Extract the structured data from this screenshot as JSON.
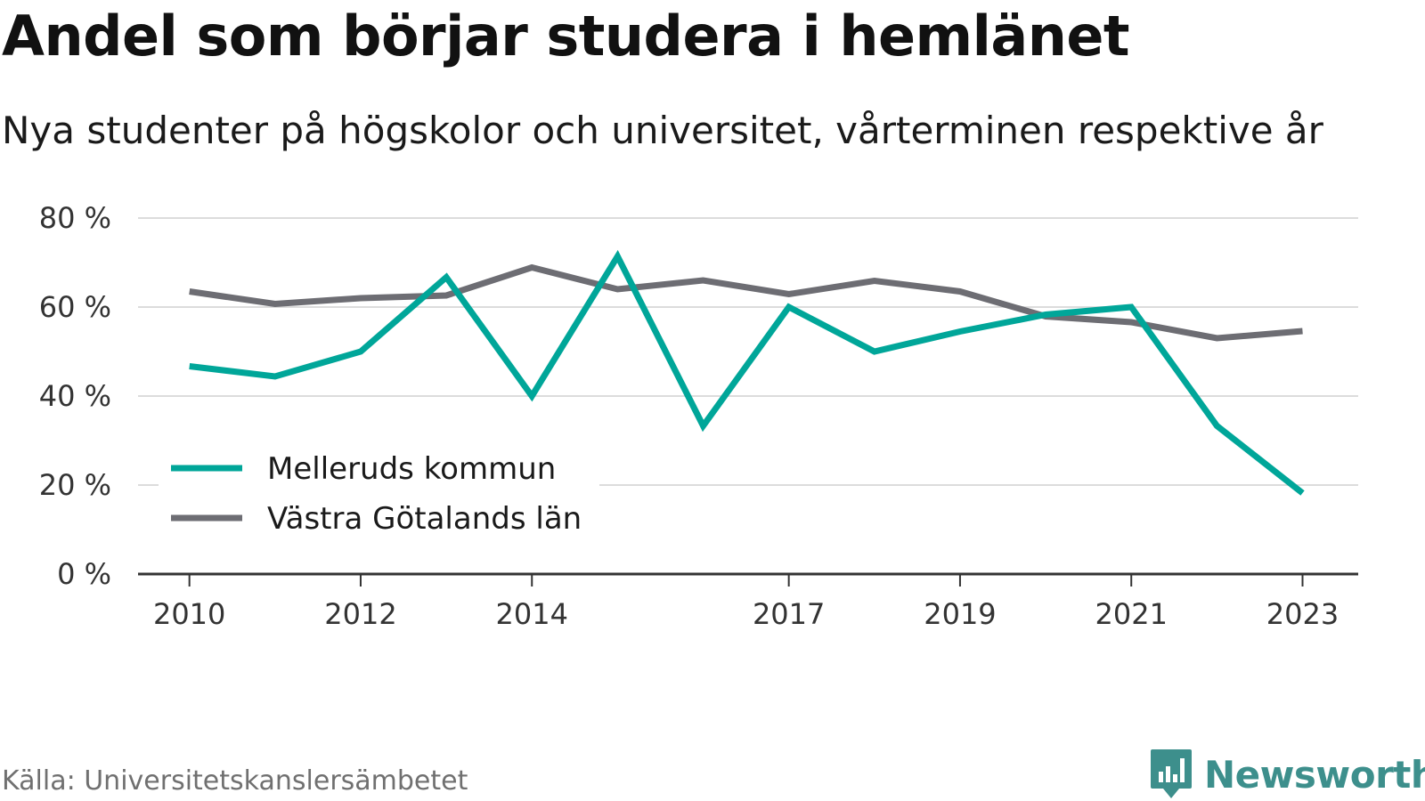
{
  "title": "Andel som börjar studera i hemlänet",
  "subtitle": "Nya studenter på högskolor och universitet, vårterminen respektive år",
  "source": "Källa: Universitetskanslersämbetet",
  "brand": "Newsworthy",
  "colors": {
    "series_1": "#00a699",
    "series_2": "#6d6d73",
    "grid": "#dcdcdc",
    "axis": "#333333",
    "brand": "#3d8f8c"
  },
  "chart_data": {
    "type": "line",
    "title": "Andel som börjar studera i hemlänet",
    "subtitle": "Nya studenter på högskolor och universitet, vårterminen respektive år",
    "x": [
      2010,
      2011,
      2012,
      2013,
      2014,
      2015,
      2016,
      2017,
      2018,
      2019,
      2020,
      2021,
      2022,
      2023
    ],
    "xlim": [
      2009.4,
      2023.65
    ],
    "ylim": [
      0,
      80
    ],
    "yticks": [
      0,
      20,
      40,
      60,
      80
    ],
    "ytick_labels": [
      "0 %",
      "20 %",
      "40 %",
      "60 %",
      "80 %"
    ],
    "xticks": [
      2010,
      2012,
      2014,
      2017,
      2019,
      2021,
      2023
    ],
    "xtick_labels": [
      "2010",
      "2012",
      "2014",
      "2017",
      "2019",
      "2021",
      "2023"
    ],
    "grid": true,
    "legend_position": "bottom-left",
    "series": [
      {
        "name": "Melleruds kommun",
        "color": "#00a699",
        "values": [
          46.7,
          44.4,
          50.0,
          66.7,
          40.0,
          71.4,
          33.3,
          60.0,
          50.0,
          54.5,
          58.3,
          60.0,
          33.3,
          18.2
        ]
      },
      {
        "name": "Västra Götalands län",
        "color": "#6d6d73",
        "values": [
          63.5,
          60.7,
          62.0,
          62.6,
          68.9,
          64.0,
          66.0,
          62.9,
          65.9,
          63.5,
          57.9,
          56.6,
          53.0,
          54.6
        ]
      }
    ]
  }
}
